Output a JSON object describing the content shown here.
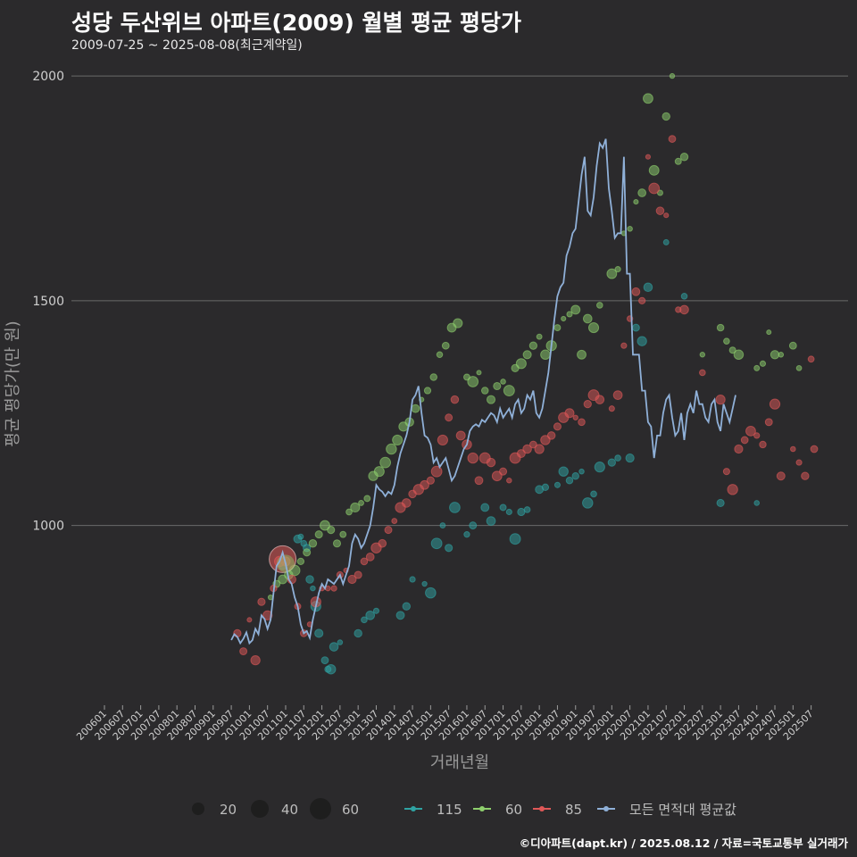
{
  "title": "성당 두산위브 아파트(2009) 월별 평균 평당가",
  "subtitle": "2009-07-25 ~ 2025-08-08(최근계약일)",
  "caption": "©디아파트(dapt.kr) / 2025.08.12 / 자료=국토교통부 실거래가",
  "colors": {
    "s115": "#2fa3a3",
    "s60": "#8ecf6d",
    "s85": "#e05858",
    "avg": "#8fb0d8"
  },
  "chart_data": {
    "type": "line",
    "title": "성당 두산위브 아파트(2009) 월별 평균 평당가",
    "xlabel": "거래년월",
    "ylabel": "평균 평당가(만 원)",
    "ylim": [
      600,
      2030
    ],
    "yticks": [
      1000,
      1500,
      2000
    ],
    "xticks": [
      "200601",
      "200607",
      "200701",
      "200707",
      "200801",
      "200807",
      "200901",
      "200907",
      "201001",
      "201007",
      "201101",
      "201107",
      "201201",
      "201207",
      "201301",
      "201307",
      "201401",
      "201407",
      "201501",
      "201507",
      "201601",
      "201607",
      "201701",
      "201707",
      "201801",
      "201807",
      "201901",
      "201907",
      "202001",
      "202007",
      "202101",
      "202107",
      "202201",
      "202207",
      "202301",
      "202307",
      "202401",
      "202407",
      "202501",
      "202507"
    ],
    "legend_size": {
      "labels": [
        "20",
        "40",
        "60"
      ]
    },
    "legend_series": [
      "115",
      "60",
      "85",
      "모든 면적대 평균값"
    ],
    "average_line": {
      "name": "모든 면적대 평균값",
      "start": "200907",
      "values": [
        745,
        758,
        752,
        738,
        748,
        762,
        738,
        745,
        770,
        758,
        800,
        792,
        770,
        790,
        850,
        910,
        920,
        940,
        915,
        880,
        870,
        840,
        820,
        780,
        760,
        765,
        750,
        790,
        820,
        850,
        870,
        860,
        880,
        875,
        870,
        880,
        890,
        870,
        890,
        910,
        960,
        980,
        970,
        950,
        960,
        980,
        1000,
        1040,
        1090,
        1080,
        1075,
        1065,
        1075,
        1070,
        1090,
        1130,
        1160,
        1180,
        1200,
        1230,
        1280,
        1290,
        1310,
        1250,
        1200,
        1195,
        1180,
        1140,
        1150,
        1130,
        1140,
        1150,
        1125,
        1100,
        1110,
        1130,
        1150,
        1170,
        1180,
        1210,
        1220,
        1225,
        1220,
        1235,
        1230,
        1240,
        1250,
        1245,
        1230,
        1260,
        1240,
        1250,
        1260,
        1240,
        1270,
        1280,
        1250,
        1260,
        1290,
        1280,
        1300,
        1250,
        1240,
        1260,
        1300,
        1340,
        1400,
        1460,
        1510,
        1530,
        1540,
        1600,
        1620,
        1650,
        1660,
        1720,
        1780,
        1820,
        1700,
        1690,
        1730,
        1800,
        1850,
        1840,
        1860,
        1750,
        1700,
        1640,
        1650,
        1650,
        1820,
        1560,
        1560,
        1380,
        1380,
        1380,
        1300,
        1300,
        1230,
        1220,
        1150,
        1200,
        1200,
        1250,
        1280,
        1290,
        1240,
        1200,
        1210,
        1250,
        1190,
        1250,
        1270,
        1250,
        1300,
        1270,
        1270,
        1240,
        1230,
        1270,
        1280,
        1230,
        1210,
        1270,
        1250,
        1230,
        1260,
        1290
      ]
    },
    "series": [
      {
        "name": "115",
        "points": [
          [
            "201012",
            910
          ],
          [
            "201105",
            970
          ],
          [
            "201106",
            975
          ],
          [
            "201107",
            960
          ],
          [
            "201108",
            950
          ],
          [
            "201109",
            880
          ],
          [
            "201110",
            860
          ],
          [
            "201111",
            820
          ],
          [
            "201112",
            760
          ],
          [
            "201202",
            700
          ],
          [
            "201203",
            680
          ],
          [
            "201204",
            680
          ],
          [
            "201205",
            730
          ],
          [
            "201207",
            740
          ],
          [
            "201301",
            760
          ],
          [
            "201303",
            790
          ],
          [
            "201305",
            800
          ],
          [
            "201307",
            810
          ],
          [
            "201403",
            800
          ],
          [
            "201405",
            820
          ],
          [
            "201407",
            880
          ],
          [
            "201411",
            870
          ],
          [
            "201501",
            850
          ],
          [
            "201503",
            960
          ],
          [
            "201505",
            1000
          ],
          [
            "201507",
            950
          ],
          [
            "201509",
            1040
          ],
          [
            "201601",
            980
          ],
          [
            "201603",
            1000
          ],
          [
            "201607",
            1040
          ],
          [
            "201609",
            1010
          ],
          [
            "201701",
            1040
          ],
          [
            "201703",
            1030
          ],
          [
            "201705",
            970
          ],
          [
            "201707",
            1030
          ],
          [
            "201709",
            1035
          ],
          [
            "201801",
            1080
          ],
          [
            "201803",
            1085
          ],
          [
            "201807",
            1090
          ],
          [
            "201809",
            1120
          ],
          [
            "201811",
            1100
          ],
          [
            "201901",
            1110
          ],
          [
            "201903",
            1120
          ],
          [
            "201905",
            1050
          ],
          [
            "201907",
            1070
          ],
          [
            "201909",
            1130
          ],
          [
            "202001",
            1140
          ],
          [
            "202003",
            1150
          ],
          [
            "202007",
            1150
          ],
          [
            "202009",
            1440
          ],
          [
            "202011",
            1410
          ],
          [
            "202101",
            1530
          ],
          [
            "202107",
            1630
          ],
          [
            "202201",
            1510
          ],
          [
            "202301",
            1050
          ],
          [
            "202401",
            1050
          ]
        ]
      },
      {
        "name": "60",
        "points": [
          [
            "201008",
            840
          ],
          [
            "201010",
            870
          ],
          [
            "201012",
            880
          ],
          [
            "201102",
            890
          ],
          [
            "201104",
            900
          ],
          [
            "201106",
            920
          ],
          [
            "201108",
            940
          ],
          [
            "201110",
            960
          ],
          [
            "201112",
            980
          ],
          [
            "201202",
            1000
          ],
          [
            "201204",
            990
          ],
          [
            "201206",
            960
          ],
          [
            "201208",
            980
          ],
          [
            "201210",
            1030
          ],
          [
            "201212",
            1040
          ],
          [
            "201302",
            1050
          ],
          [
            "201304",
            1060
          ],
          [
            "201306",
            1110
          ],
          [
            "201308",
            1120
          ],
          [
            "201310",
            1140
          ],
          [
            "201312",
            1170
          ],
          [
            "201402",
            1190
          ],
          [
            "201404",
            1220
          ],
          [
            "201406",
            1230
          ],
          [
            "201408",
            1260
          ],
          [
            "201410",
            1280
          ],
          [
            "201412",
            1300
          ],
          [
            "201502",
            1330
          ],
          [
            "201504",
            1380
          ],
          [
            "201506",
            1400
          ],
          [
            "201508",
            1440
          ],
          [
            "201510",
            1450
          ],
          [
            "201601",
            1330
          ],
          [
            "201603",
            1320
          ],
          [
            "201605",
            1340
          ],
          [
            "201607",
            1300
          ],
          [
            "201609",
            1280
          ],
          [
            "201611",
            1310
          ],
          [
            "201701",
            1320
          ],
          [
            "201703",
            1300
          ],
          [
            "201705",
            1350
          ],
          [
            "201707",
            1360
          ],
          [
            "201709",
            1380
          ],
          [
            "201711",
            1400
          ],
          [
            "201801",
            1420
          ],
          [
            "201803",
            1380
          ],
          [
            "201805",
            1400
          ],
          [
            "201807",
            1440
          ],
          [
            "201809",
            1460
          ],
          [
            "201811",
            1470
          ],
          [
            "201901",
            1480
          ],
          [
            "201903",
            1380
          ],
          [
            "201905",
            1460
          ],
          [
            "201907",
            1440
          ],
          [
            "201909",
            1490
          ],
          [
            "202001",
            1560
          ],
          [
            "202003",
            1570
          ],
          [
            "202005",
            1650
          ],
          [
            "202007",
            1660
          ],
          [
            "202009",
            1720
          ],
          [
            "202011",
            1740
          ],
          [
            "202101",
            1950
          ],
          [
            "202103",
            1790
          ],
          [
            "202105",
            1740
          ],
          [
            "202107",
            1910
          ],
          [
            "202109",
            2000
          ],
          [
            "202111",
            1810
          ],
          [
            "202201",
            1820
          ],
          [
            "202207",
            1380
          ],
          [
            "202301",
            1440
          ],
          [
            "202303",
            1410
          ],
          [
            "202305",
            1390
          ],
          [
            "202307",
            1380
          ],
          [
            "202401",
            1350
          ],
          [
            "202403",
            1360
          ],
          [
            "202405",
            1430
          ],
          [
            "202407",
            1380
          ],
          [
            "202409",
            1380
          ],
          [
            "202501",
            1400
          ],
          [
            "202503",
            1350
          ]
        ]
      },
      {
        "name": "85",
        "points": [
          [
            "200909",
            760
          ],
          [
            "200911",
            720
          ],
          [
            "201001",
            790
          ],
          [
            "201003",
            700
          ],
          [
            "201005",
            830
          ],
          [
            "201007",
            800
          ],
          [
            "201009",
            860
          ],
          [
            "201011",
            920
          ],
          [
            "201101",
            920
          ],
          [
            "201103",
            880
          ],
          [
            "201105",
            820
          ],
          [
            "201107",
            760
          ],
          [
            "201109",
            780
          ],
          [
            "201111",
            830
          ],
          [
            "201201",
            860
          ],
          [
            "201203",
            860
          ],
          [
            "201205",
            860
          ],
          [
            "201207",
            890
          ],
          [
            "201209",
            900
          ],
          [
            "201211",
            880
          ],
          [
            "201301",
            890
          ],
          [
            "201303",
            920
          ],
          [
            "201305",
            930
          ],
          [
            "201307",
            950
          ],
          [
            "201309",
            960
          ],
          [
            "201311",
            990
          ],
          [
            "201401",
            1010
          ],
          [
            "201403",
            1040
          ],
          [
            "201405",
            1050
          ],
          [
            "201407",
            1070
          ],
          [
            "201409",
            1080
          ],
          [
            "201411",
            1090
          ],
          [
            "201501",
            1100
          ],
          [
            "201503",
            1120
          ],
          [
            "201505",
            1190
          ],
          [
            "201507",
            1240
          ],
          [
            "201509",
            1280
          ],
          [
            "201511",
            1200
          ],
          [
            "201601",
            1180
          ],
          [
            "201603",
            1150
          ],
          [
            "201605",
            1100
          ],
          [
            "201607",
            1150
          ],
          [
            "201609",
            1140
          ],
          [
            "201611",
            1110
          ],
          [
            "201701",
            1120
          ],
          [
            "201703",
            1100
          ],
          [
            "201705",
            1150
          ],
          [
            "201707",
            1160
          ],
          [
            "201709",
            1170
          ],
          [
            "201711",
            1180
          ],
          [
            "201801",
            1170
          ],
          [
            "201803",
            1190
          ],
          [
            "201805",
            1200
          ],
          [
            "201807",
            1220
          ],
          [
            "201809",
            1240
          ],
          [
            "201811",
            1250
          ],
          [
            "201901",
            1240
          ],
          [
            "201903",
            1230
          ],
          [
            "201905",
            1270
          ],
          [
            "201907",
            1290
          ],
          [
            "201909",
            1280
          ],
          [
            "202001",
            1260
          ],
          [
            "202003",
            1290
          ],
          [
            "202005",
            1400
          ],
          [
            "202007",
            1460
          ],
          [
            "202009",
            1520
          ],
          [
            "202011",
            1500
          ],
          [
            "202101",
            1820
          ],
          [
            "202103",
            1750
          ],
          [
            "202105",
            1700
          ],
          [
            "202107",
            1690
          ],
          [
            "202109",
            1860
          ],
          [
            "202111",
            1480
          ],
          [
            "202201",
            1480
          ],
          [
            "202207",
            1340
          ],
          [
            "202301",
            1280
          ],
          [
            "202303",
            1120
          ],
          [
            "202305",
            1080
          ],
          [
            "202307",
            1170
          ],
          [
            "202309",
            1190
          ],
          [
            "202311",
            1210
          ],
          [
            "202401",
            1200
          ],
          [
            "202403",
            1180
          ],
          [
            "202405",
            1230
          ],
          [
            "202407",
            1270
          ],
          [
            "202409",
            1110
          ],
          [
            "202501",
            1170
          ],
          [
            "202503",
            1140
          ],
          [
            "202505",
            1110
          ],
          [
            "202507",
            1370
          ],
          [
            "202508",
            1170
          ]
        ]
      }
    ]
  }
}
